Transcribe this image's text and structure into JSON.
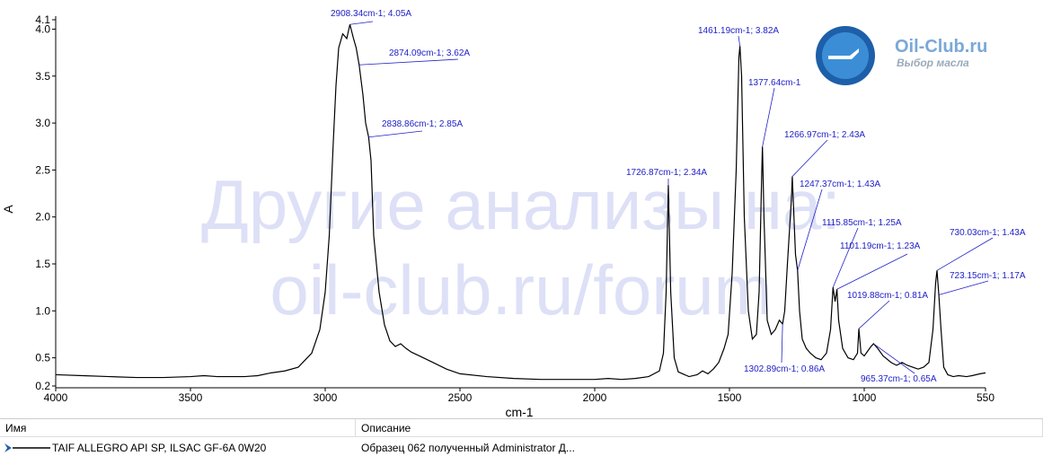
{
  "chart_data": {
    "type": "line",
    "xlabel": "cm-1",
    "ylabel": "A",
    "xlim": [
      4000,
      550
    ],
    "ylim": [
      0.2,
      4.1
    ],
    "xticks": [
      4000,
      3500,
      3000,
      2500,
      2000,
      1500,
      1000,
      550
    ],
    "yticks": [
      0.2,
      0.5,
      {
        "value": 1,
        "label": "1.0"
      },
      1.5,
      {
        "value": 2,
        "label": "2.0"
      },
      2.5,
      {
        "value": 3,
        "label": "3.0"
      },
      3.5,
      {
        "value": 4,
        "label": "4.0"
      },
      4.1
    ],
    "color": "#000000",
    "x": [
      4000,
      3900,
      3800,
      3700,
      3600,
      3500,
      3450,
      3400,
      3300,
      3250,
      3200,
      3150,
      3100,
      3050,
      3020,
      3000,
      2985,
      2970,
      2960,
      2950,
      2935,
      2920,
      2908.34,
      2895,
      2885,
      2874.09,
      2860,
      2850,
      2838.86,
      2830,
      2820,
      2800,
      2780,
      2760,
      2740,
      2720,
      2700,
      2680,
      2650,
      2600,
      2550,
      2500,
      2400,
      2300,
      2200,
      2100,
      2000,
      1950,
      1900,
      1850,
      1800,
      1760,
      1745,
      1735,
      1726.87,
      1718,
      1705,
      1690,
      1650,
      1620,
      1600,
      1580,
      1560,
      1540,
      1520,
      1505,
      1490,
      1475,
      1465,
      1461.19,
      1455,
      1445,
      1430,
      1415,
      1400,
      1390,
      1380,
      1377.64,
      1372,
      1360,
      1345,
      1330,
      1315,
      1302.89,
      1295,
      1285,
      1270,
      1266.97,
      1255,
      1247.37,
      1240,
      1230,
      1215,
      1200,
      1180,
      1160,
      1140,
      1125,
      1115.85,
      1108,
      1101.19,
      1095,
      1080,
      1060,
      1040,
      1025,
      1019.88,
      1012,
      1000,
      985,
      975,
      965.37,
      950,
      930,
      900,
      880,
      860,
      840,
      820,
      800,
      780,
      760,
      745,
      735,
      730.03,
      723.15,
      715,
      705,
      690,
      670,
      650,
      620,
      600,
      570,
      550
    ],
    "values": [
      0.32,
      0.31,
      0.3,
      0.29,
      0.29,
      0.3,
      0.31,
      0.3,
      0.3,
      0.31,
      0.34,
      0.36,
      0.4,
      0.55,
      0.8,
      1.2,
      1.8,
      2.8,
      3.4,
      3.8,
      3.95,
      3.9,
      4.05,
      3.9,
      3.8,
      3.62,
      3.3,
      3.0,
      2.85,
      2.6,
      1.8,
      1.2,
      0.85,
      0.68,
      0.62,
      0.65,
      0.6,
      0.56,
      0.52,
      0.45,
      0.38,
      0.33,
      0.3,
      0.28,
      0.27,
      0.27,
      0.27,
      0.28,
      0.27,
      0.28,
      0.3,
      0.36,
      0.55,
      1.2,
      2.34,
      1.2,
      0.5,
      0.35,
      0.3,
      0.32,
      0.36,
      0.33,
      0.38,
      0.45,
      0.6,
      0.75,
      1.4,
      2.5,
      3.7,
      3.82,
      3.5,
      2.0,
      1.0,
      0.7,
      0.75,
      1.2,
      2.5,
      2.75,
      2.0,
      0.9,
      0.75,
      0.8,
      0.9,
      0.86,
      1.0,
      1.5,
      2.2,
      2.43,
      1.6,
      1.43,
      1.0,
      0.7,
      0.6,
      0.55,
      0.5,
      0.48,
      0.55,
      0.8,
      1.25,
      1.1,
      1.23,
      0.9,
      0.6,
      0.5,
      0.48,
      0.55,
      0.81,
      0.55,
      0.52,
      0.58,
      0.62,
      0.65,
      0.6,
      0.52,
      0.45,
      0.42,
      0.45,
      0.42,
      0.4,
      0.38,
      0.4,
      0.45,
      0.8,
      1.3,
      1.43,
      1.17,
      0.8,
      0.4,
      0.32,
      0.3,
      0.31,
      0.3,
      0.31,
      0.33,
      0.34
    ],
    "annotations": [
      {
        "text": "2908.34cm-1; 4.05A",
        "x": 2908.34,
        "y": 4.05
      },
      {
        "text": "2874.09cm-1; 3.62A",
        "x": 2874.09,
        "y": 3.62
      },
      {
        "text": "2838.86cm-1; 2.85A",
        "x": 2838.86,
        "y": 2.85
      },
      {
        "text": "1726.87cm-1; 2.34A",
        "x": 1726.87,
        "y": 2.34
      },
      {
        "text": "1461.19cm-1; 3.82A",
        "x": 1461.19,
        "y": 3.82
      },
      {
        "text": "1377.64cm-1",
        "x": 1377.64,
        "y": 2.75
      },
      {
        "text": "1266.97cm-1; 2.43A",
        "x": 1266.97,
        "y": 2.43
      },
      {
        "text": "1247.37cm-1; 1.43A",
        "x": 1247.37,
        "y": 1.43
      },
      {
        "text": "1115.85cm-1; 1.25A",
        "x": 1115.85,
        "y": 1.25
      },
      {
        "text": "1101.19cm-1; 1.23A",
        "x": 1101.19,
        "y": 1.23
      },
      {
        "text": "1019.88cm-1; 0.81A",
        "x": 1019.88,
        "y": 0.81
      },
      {
        "text": "730.03cm-1; 1.43A",
        "x": 730.03,
        "y": 1.43
      },
      {
        "text": "723.15cm-1; 1.17A",
        "x": 723.15,
        "y": 1.17
      },
      {
        "text": "1302.89cm-1; 0.86A",
        "x": 1302.89,
        "y": 0.86
      },
      {
        "text": "965.37cm-1; 0.65A",
        "x": 965.37,
        "y": 0.65
      }
    ]
  },
  "watermark": [
    "Другие анализы на:",
    "oil-club.ru/forum"
  ],
  "logo": {
    "title": "Oil-Club.ru",
    "subtitle": "Выбор масла"
  },
  "table": {
    "headers": [
      "Имя",
      "Описание"
    ],
    "rows": [
      [
        "TAIF ALLEGRO API SP, ILSAC GF-6A 0W20",
        "Образец 062 полученный Administrator Д..."
      ]
    ]
  }
}
